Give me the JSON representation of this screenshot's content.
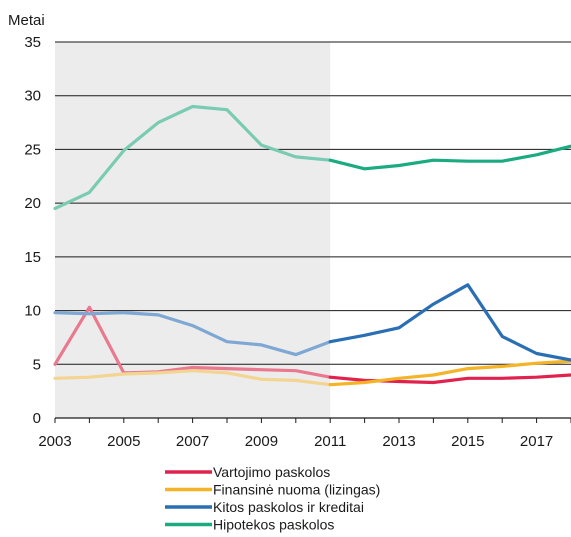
{
  "chart_data": {
    "type": "line",
    "ylabel": "Metai",
    "ylim": [
      0,
      35
    ],
    "yticks": [
      0,
      5,
      10,
      15,
      20,
      25,
      30,
      35
    ],
    "xlim": [
      2003,
      2018
    ],
    "xticks": [
      2003,
      2005,
      2007,
      2009,
      2011,
      2013,
      2015,
      2017
    ],
    "shaded_region": {
      "from": 2003,
      "to": 2011,
      "color": "#ececec"
    },
    "x": [
      2003,
      2004,
      2005,
      2006,
      2007,
      2008,
      2009,
      2010,
      2011,
      2012,
      2013,
      2014,
      2015,
      2016,
      2017,
      2018
    ],
    "series": [
      {
        "name": "Vartojimo paskolos",
        "color": "#e0234e",
        "faded_color": "#e8798f",
        "values": [
          5.0,
          10.3,
          4.2,
          4.3,
          4.7,
          4.6,
          4.5,
          4.4,
          3.8,
          3.5,
          3.4,
          3.3,
          3.7,
          3.7,
          3.8,
          4.0
        ]
      },
      {
        "name": "Finansinė nuoma (lizingas)",
        "color": "#f5b327",
        "faded_color": "#f3d491",
        "values": [
          3.7,
          3.8,
          4.1,
          4.2,
          4.4,
          4.2,
          3.6,
          3.5,
          3.1,
          3.3,
          3.7,
          4.0,
          4.6,
          4.8,
          5.1,
          5.3
        ]
      },
      {
        "name": "Kitos paskolos ir kreditai",
        "color": "#2a6eb4",
        "faded_color": "#7ea7d3",
        "values": [
          9.8,
          9.7,
          9.8,
          9.6,
          8.6,
          7.1,
          6.8,
          5.9,
          7.1,
          7.7,
          8.4,
          10.6,
          12.4,
          7.6,
          6.0,
          5.4
        ]
      },
      {
        "name": "Hipotekos paskolos",
        "color": "#1aab80",
        "faded_color": "#79cbb2",
        "values": [
          19.5,
          21.0,
          24.9,
          27.5,
          29.0,
          28.7,
          25.4,
          24.3,
          24.0,
          23.2,
          23.5,
          24.0,
          23.9,
          23.9,
          24.5,
          25.3
        ]
      }
    ]
  }
}
